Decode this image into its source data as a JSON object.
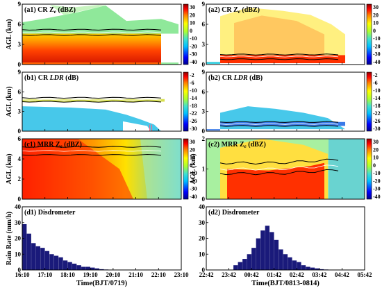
{
  "chart_data": [
    {
      "id": "a1",
      "type": "heatmap",
      "title": "(a1) CR Z",
      "title_sub": "e",
      "title_unit": "(dBZ)",
      "ylabel": "AGL (km)",
      "ylim": [
        0,
        9
      ],
      "yticks": [
        "0",
        "3",
        "6",
        "9"
      ],
      "xlim": [
        "16:10",
        "23:10"
      ],
      "xticks": [
        "16:10",
        "17:10",
        "18:10",
        "19:10",
        "20:10",
        "21:10",
        "22:10",
        "23:10"
      ],
      "colorbar_ticks": [
        "30",
        "20",
        "10",
        "0",
        "-10",
        "-20",
        "-30",
        "-40"
      ],
      "colormap": "jet",
      "layer_lines_km": [
        4.4,
        4.8,
        5.2
      ]
    },
    {
      "id": "a2",
      "type": "heatmap",
      "title": "(a2) CR Z",
      "title_sub": "e",
      "title_unit": "(dBZ)",
      "ylabel": "",
      "ylim": [
        0,
        9
      ],
      "yticks": [
        "0",
        "3",
        "6",
        "9"
      ],
      "xlim": [
        "22:42",
        "05:42"
      ],
      "xticks": [
        "22:42",
        "23:42",
        "00:42",
        "01:42",
        "02:42",
        "03:42",
        "04:42",
        "05:42"
      ],
      "colorbar_ticks": [
        "30",
        "20",
        "10",
        "0",
        "-10",
        "-20",
        "-30",
        "-40"
      ],
      "colormap": "jet",
      "layer_lines_km": [
        0.8,
        1.2,
        1.5
      ]
    },
    {
      "id": "b1",
      "type": "heatmap",
      "title": "(b1) CR ",
      "title_italic": "LDR",
      "title_unit": " (dB)",
      "ylabel": "AGL (km)",
      "ylim": [
        0,
        9
      ],
      "yticks": [
        "0",
        "3",
        "6",
        "9"
      ],
      "xlim": [
        "16:10",
        "23:10"
      ],
      "xticks": [
        "16:10",
        "17:10",
        "18:10",
        "19:10",
        "20:10",
        "21:10",
        "22:10",
        "23:10"
      ],
      "colorbar_ticks": [
        "-2",
        "-6",
        "-10",
        "-14",
        "-18",
        "-22",
        "-26",
        "-30"
      ],
      "colormap": "jet",
      "layer_lines_km": [
        4.5,
        4.8,
        5.1
      ]
    },
    {
      "id": "b2",
      "type": "heatmap",
      "title": "(b2) CR ",
      "title_italic": "LDR",
      "title_unit": " (dB)",
      "ylabel": "",
      "ylim": [
        0,
        9
      ],
      "yticks": [
        "0",
        "3",
        "6",
        "9"
      ],
      "xlim": [
        "22:42",
        "05:42"
      ],
      "xticks": [
        "22:42",
        "23:42",
        "00:42",
        "01:42",
        "02:42",
        "03:42",
        "04:42",
        "05:42"
      ],
      "colorbar_ticks": [
        "-2",
        "-6",
        "-10",
        "-14",
        "-18",
        "-22",
        "-26",
        "-30"
      ],
      "colormap": "jet",
      "layer_lines_km": [
        0.8,
        1.1,
        1.4
      ]
    },
    {
      "id": "c1",
      "type": "heatmap",
      "title": "(c1) MRR Z",
      "title_sub": "e",
      "title_unit": "(dBZ)",
      "ylabel": "AGL (km)",
      "ylim": [
        0,
        6
      ],
      "yticks": [
        "0",
        "2",
        "4",
        "6"
      ],
      "xlim": [
        "16:10",
        "23:10"
      ],
      "xticks": [
        "16:10",
        "17:10",
        "18:10",
        "19:10",
        "20:10",
        "21:10",
        "22:10",
        "23:10"
      ],
      "colorbar_ticks": [
        "30",
        "20",
        "10",
        "0",
        "-10",
        "-20",
        "-30",
        "-40"
      ],
      "colormap": "jet",
      "layer_lines_km": [
        4.4,
        4.8,
        5.2
      ]
    },
    {
      "id": "c2",
      "type": "heatmap",
      "title": "(c2) MRR Z",
      "title_sub": "e",
      "title_unit": "(dBZ)",
      "ylabel": "AGL (km)",
      "ylim": [
        0,
        2
      ],
      "yticks": [
        "0",
        "1",
        "2"
      ],
      "xlim": [
        "22:42",
        "05:42"
      ],
      "xticks": [
        "22:42",
        "23:42",
        "00:42",
        "01:42",
        "02:42",
        "03:42",
        "04:42",
        "05:42"
      ],
      "colorbar_ticks": [
        "30",
        "20",
        "10",
        "0",
        "-10",
        "-20",
        "-30",
        "-40"
      ],
      "colormap": "jet",
      "layer_lines_km": [
        0.85,
        1.0,
        1.2
      ]
    },
    {
      "id": "d1",
      "type": "bar",
      "title": "(d1) Disdrometer",
      "ylabel": "Rain Rate (mm/h)",
      "ylim": [
        0,
        40
      ],
      "yticks": [
        "0",
        "10",
        "20",
        "30",
        "40"
      ],
      "xlim": [
        "16:10",
        "23:10"
      ],
      "xticks": [
        "16:10",
        "17:10",
        "18:10",
        "19:10",
        "20:10",
        "21:10",
        "22:10",
        "23:10"
      ],
      "xlabel": "Time(BJT/0719)",
      "series": [
        {
          "t_hours_from_start": [
            0.0,
            0.2,
            0.4,
            0.6,
            0.8,
            1.0,
            1.2,
            1.4,
            1.6,
            1.8,
            2.0,
            2.2,
            2.4,
            2.6,
            2.8,
            3.0,
            3.2,
            3.4,
            3.6,
            3.8,
            4.0,
            4.2,
            4.4,
            4.6,
            4.8,
            5.0,
            5.2,
            5.4,
            5.6,
            5.8,
            6.0,
            6.2,
            6.4,
            6.6,
            6.8,
            7.0
          ],
          "values": [
            29,
            23,
            17,
            15,
            14,
            12,
            10,
            9,
            8,
            6,
            5,
            4,
            3,
            2,
            2,
            1.5,
            1,
            0.5,
            0.3,
            0.2,
            0.1,
            0,
            0,
            0,
            0,
            0,
            0,
            0,
            0,
            0,
            0,
            0,
            0,
            0,
            0,
            0
          ]
        }
      ]
    },
    {
      "id": "d2",
      "type": "bar",
      "title": "(d2) Disdrometer",
      "ylabel": "",
      "ylim": [
        0,
        40
      ],
      "yticks": [
        "0",
        "10",
        "20",
        "30",
        "40"
      ],
      "xlim": [
        "22:42",
        "05:42"
      ],
      "xticks": [
        "22:42",
        "23:42",
        "00:42",
        "01:42",
        "02:42",
        "03:42",
        "04:42",
        "05:42"
      ],
      "xlabel": "Time(BJT/0813-0814)",
      "series": [
        {
          "t_hours_from_start": [
            0.0,
            0.2,
            0.4,
            0.6,
            0.8,
            1.0,
            1.2,
            1.4,
            1.6,
            1.8,
            2.0,
            2.2,
            2.4,
            2.6,
            2.8,
            3.0,
            3.2,
            3.4,
            3.6,
            3.8,
            4.0,
            4.2,
            4.4,
            4.6,
            4.8,
            5.0,
            5.2,
            5.4,
            5.6,
            5.8,
            6.0,
            6.2,
            6.4,
            6.6,
            6.8,
            7.0
          ],
          "values": [
            0,
            0,
            0,
            0,
            0,
            0,
            3,
            5,
            7,
            10,
            14,
            20,
            25,
            28,
            24,
            19,
            13,
            10,
            8,
            6,
            5,
            3,
            2,
            1.5,
            1,
            0.5,
            0.3,
            0,
            0,
            0,
            0,
            0,
            0,
            0,
            0,
            0
          ]
        }
      ]
    }
  ]
}
